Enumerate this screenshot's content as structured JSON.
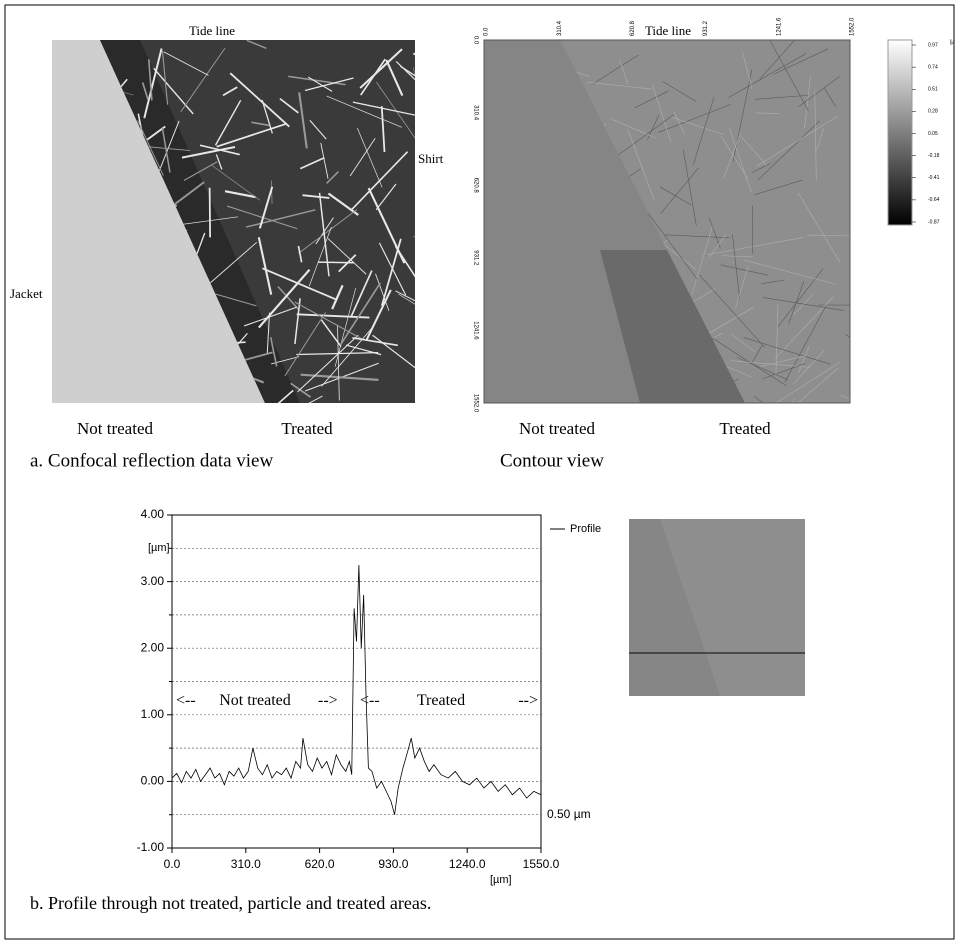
{
  "panel_a": {
    "left_image": {
      "top_label": "Tide line",
      "right_label": "Shirt",
      "left_label": "Jacket",
      "bottom_left_label": "Not treated",
      "bottom_right_label": "Treated"
    },
    "left_caption": "a. Confocal reflection data view",
    "right_image": {
      "top_label": "Tide line",
      "bottom_left_label": "Not treated",
      "bottom_right_label": "Treated",
      "axis_ticks": [
        "0.0",
        "310.4",
        "620.8",
        "931.2",
        "1241.6",
        "1552.0"
      ]
    },
    "right_caption": "Contour view",
    "colorbar": {
      "unit": "[µ",
      "ticks": [
        "0.97",
        "0.74",
        "0.51",
        "0.28",
        "0.05",
        "-0.18",
        "-0.41",
        "-0.64",
        "-0.87"
      ]
    }
  },
  "chart_data": {
    "type": "line",
    "y_label": "[µm]",
    "x_label": "[µm]",
    "xlim": [
      0,
      1550
    ],
    "ylim": [
      -1,
      4
    ],
    "xticks": [
      {
        "value": 0,
        "label": "0.0"
      },
      {
        "value": 310,
        "label": "310.0"
      },
      {
        "value": 620,
        "label": "620.0"
      },
      {
        "value": 930,
        "label": "930.0"
      },
      {
        "value": 1240,
        "label": "1240.0"
      },
      {
        "value": 1550,
        "label": "1550.0"
      }
    ],
    "yticks": [
      {
        "value": -1,
        "label": "-1.00"
      },
      {
        "value": 0,
        "label": "0.00"
      },
      {
        "value": 1,
        "label": "1.00"
      },
      {
        "value": 2,
        "label": "2.00"
      },
      {
        "value": 3,
        "label": "3.00"
      },
      {
        "value": 4,
        "label": "4.00"
      }
    ],
    "minor_yticks": [
      -0.5,
      0.5,
      1.5,
      2.5,
      3.5
    ],
    "grid": true,
    "annotations": [
      "<--",
      "Not treated",
      "-->",
      "<--",
      "Treated",
      "-->"
    ],
    "right_annotation": "0.50 µm",
    "x": [
      0,
      20,
      40,
      60,
      80,
      100,
      120,
      140,
      160,
      180,
      200,
      220,
      240,
      260,
      280,
      300,
      320,
      340,
      360,
      380,
      400,
      420,
      440,
      460,
      480,
      500,
      520,
      540,
      550,
      570,
      590,
      610,
      630,
      650,
      670,
      690,
      710,
      730,
      745,
      755,
      765,
      775,
      785,
      795,
      805,
      815,
      825,
      840,
      860,
      880,
      900,
      920,
      935,
      950,
      970,
      990,
      1005,
      1020,
      1040,
      1060,
      1080,
      1100,
      1130,
      1160,
      1190,
      1220,
      1250,
      1280,
      1310,
      1340,
      1370,
      1400,
      1430,
      1460,
      1490,
      1520,
      1550
    ],
    "series": [
      {
        "name": "Profile",
        "color": "#000000",
        "values": [
          0.05,
          0.12,
          -0.02,
          0.15,
          0.05,
          0.18,
          0.0,
          0.1,
          0.2,
          0.05,
          0.12,
          -0.05,
          0.15,
          0.08,
          0.2,
          0.05,
          0.15,
          0.5,
          0.2,
          0.1,
          0.25,
          0.05,
          0.15,
          0.1,
          0.2,
          0.05,
          0.3,
          0.2,
          0.65,
          0.25,
          0.15,
          0.35,
          0.2,
          0.3,
          0.1,
          0.4,
          0.25,
          0.15,
          0.3,
          0.1,
          2.6,
          2.1,
          3.25,
          2.0,
          2.8,
          1.3,
          0.2,
          0.15,
          -0.1,
          0.0,
          -0.15,
          -0.3,
          -0.5,
          -0.1,
          0.2,
          0.45,
          0.65,
          0.35,
          0.5,
          0.3,
          0.15,
          0.25,
          0.1,
          0.05,
          0.15,
          0.0,
          -0.05,
          0.05,
          -0.1,
          0.0,
          -0.15,
          -0.05,
          -0.2,
          -0.1,
          -0.25,
          -0.15,
          -0.2
        ]
      }
    ]
  },
  "caption_b": "b.  Profile through not treated, particle and treated areas."
}
